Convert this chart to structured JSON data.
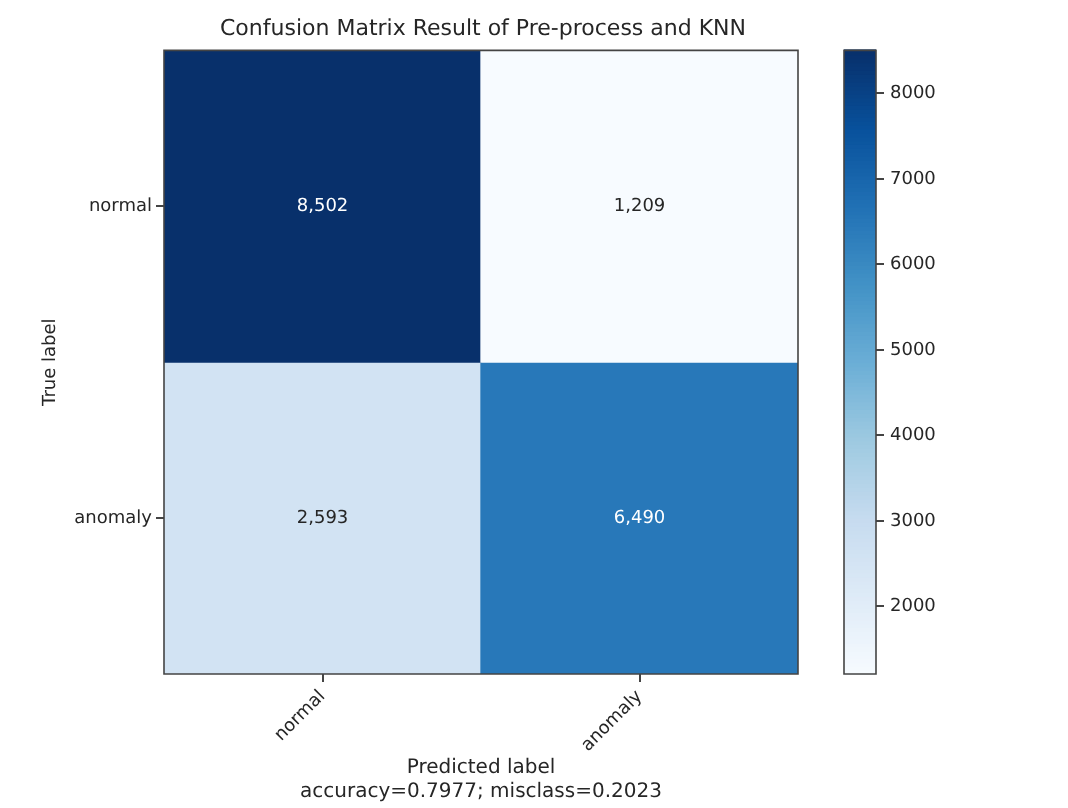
{
  "chart_data": {
    "type": "heatmap",
    "title": "Confusion Matrix Result of Pre-process and KNN",
    "xlabel": "Predicted label",
    "ylabel": "True label",
    "categories": [
      "normal",
      "anomaly"
    ],
    "y_categories": [
      "normal",
      "anomaly"
    ],
    "cells": [
      [
        8502,
        1209
      ],
      [
        2593,
        6490
      ]
    ],
    "cell_labels": [
      [
        "8,502",
        "1,209"
      ],
      [
        "2,593",
        "6,490"
      ]
    ],
    "clim": [
      1209,
      8502
    ],
    "cticks": [
      2000,
      3000,
      4000,
      5000,
      6000,
      7000,
      8000
    ],
    "annotations": [
      "accuracy=0.7977; misclass=0.2023"
    ]
  }
}
